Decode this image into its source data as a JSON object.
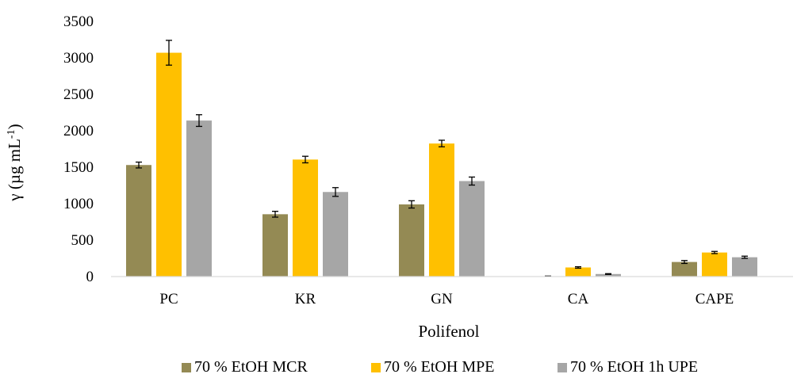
{
  "chart_data": {
    "type": "bar",
    "title": "",
    "xlabel": "Polifenol",
    "ylabel": "γ (µg mL⁻¹)",
    "ylabel_parts": {
      "main": "γ (µg mL",
      "sup": "-1",
      "close": ")"
    },
    "categories": [
      "PC",
      "KR",
      "GN",
      "CA",
      "CAPE"
    ],
    "ylim": [
      0,
      3500
    ],
    "yticks": [
      0,
      500,
      1000,
      1500,
      2000,
      2500,
      3000,
      3500
    ],
    "ytick_labels": [
      "0",
      "500",
      "1000",
      "1500",
      "2000",
      "2500",
      "3000",
      "3500"
    ],
    "grid": false,
    "legend_position": "bottom",
    "series": [
      {
        "name": "70 % EtOH MCR",
        "color": "#948A54",
        "values": [
          1530,
          855,
          990,
          5,
          200
        ],
        "errors": [
          40,
          40,
          50,
          2,
          20
        ]
      },
      {
        "name": "70 % EtOH MPE",
        "color": "#FFC000",
        "values": [
          3070,
          1605,
          1825,
          125,
          330
        ],
        "errors": [
          170,
          45,
          45,
          10,
          15
        ]
      },
      {
        "name": "70 % EtOH 1h UPE",
        "color": "#A6A6A6",
        "values": [
          2140,
          1160,
          1310,
          35,
          265
        ],
        "errors": [
          80,
          60,
          55,
          5,
          15
        ]
      }
    ]
  }
}
